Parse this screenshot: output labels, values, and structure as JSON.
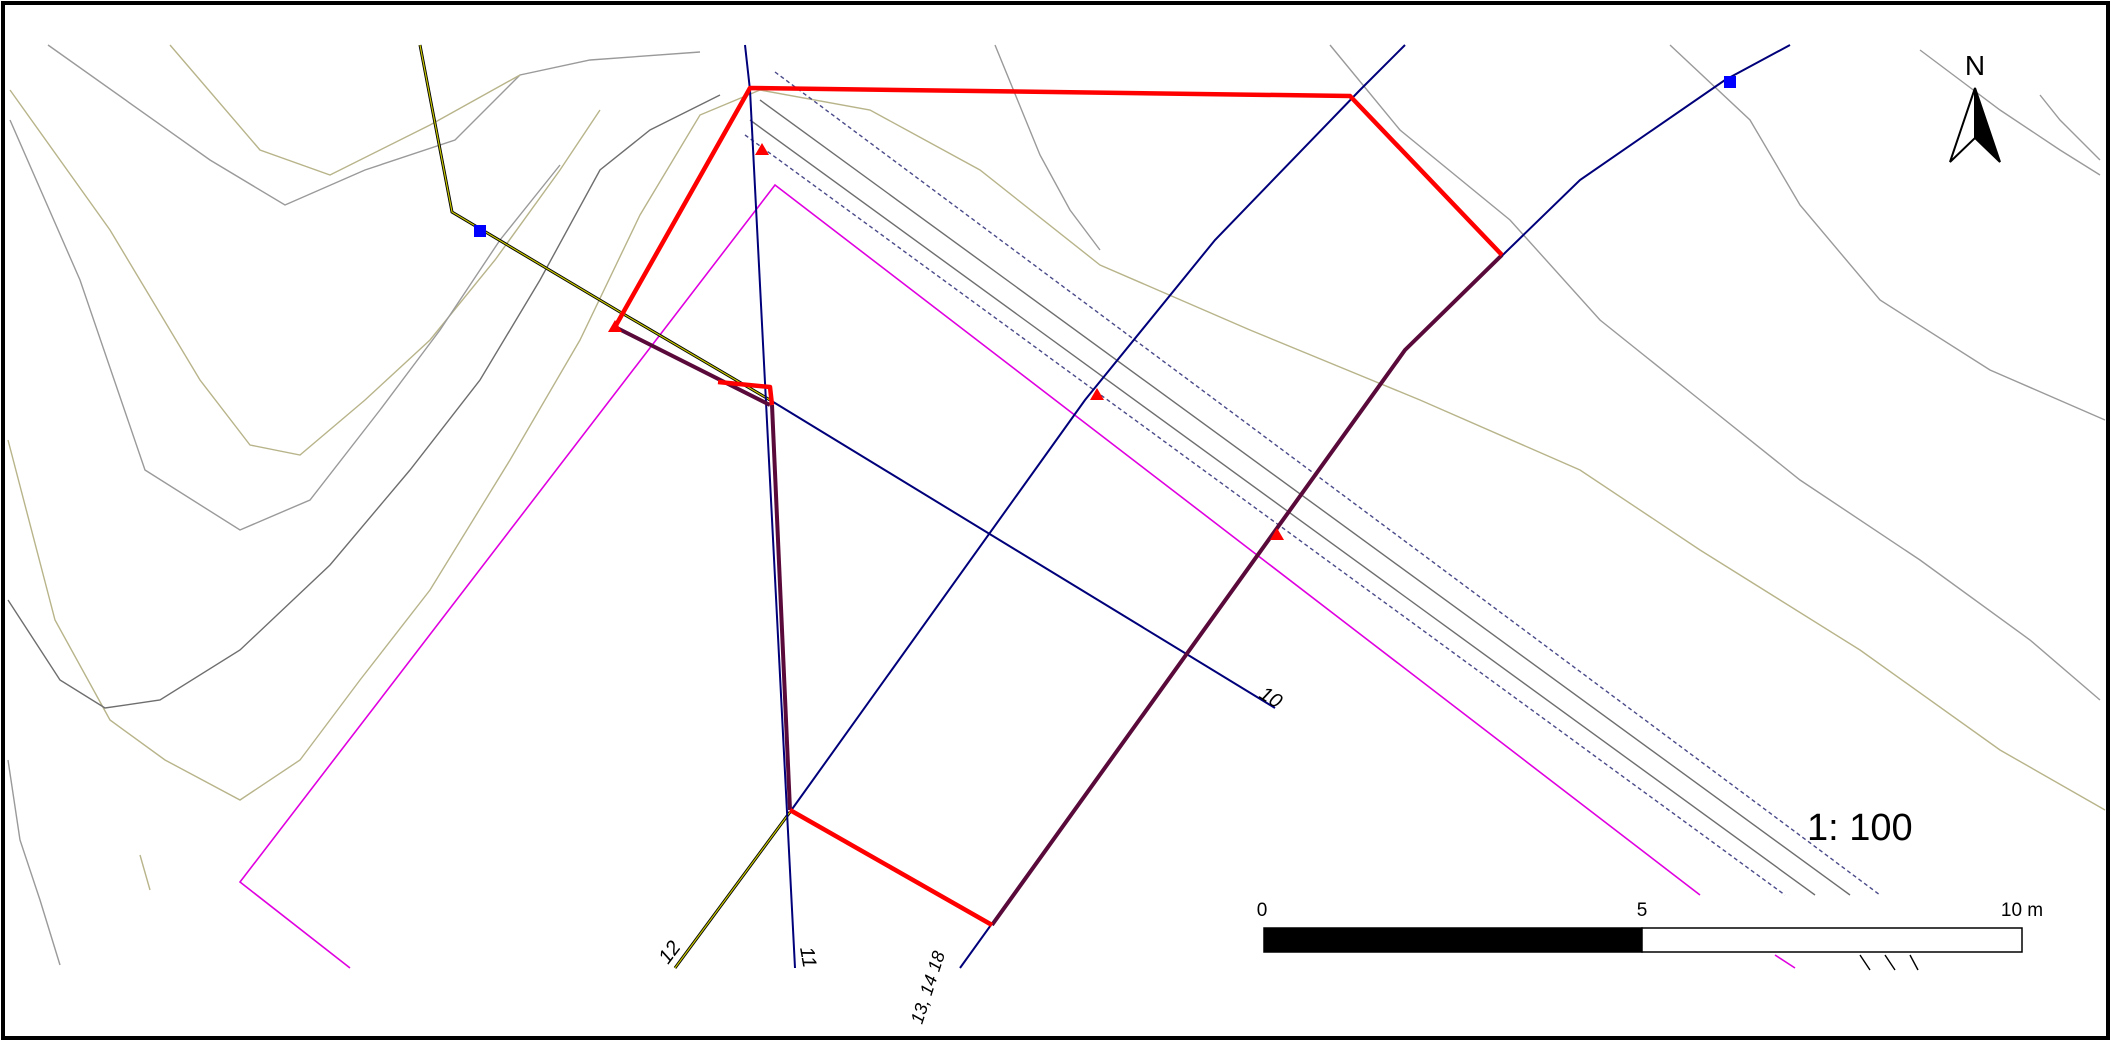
{
  "map": {
    "north_label": "N",
    "scale_text": "1: 100",
    "scalebar": {
      "tick_0": "0",
      "tick_mid": "5",
      "tick_end": "10 m"
    },
    "line_labels": {
      "line_10": "10",
      "line_11": "11",
      "line_12": "12",
      "line_13_14": "13, 14 18"
    },
    "colors": {
      "frame": "#000000",
      "contour_olive": "#b8b48a",
      "contour_grey": "#9a9a9a",
      "contour_dark": "#6e6e6e",
      "survey_line": "#00007a",
      "highlight_red": "#ff0000",
      "boundary_magenta": "#e000e0",
      "road_yellow": "#c8c800",
      "marker_blue": "#0000ff"
    },
    "icons": [
      "north-arrow-icon",
      "red-triangle-marker",
      "blue-square-marker"
    ]
  }
}
